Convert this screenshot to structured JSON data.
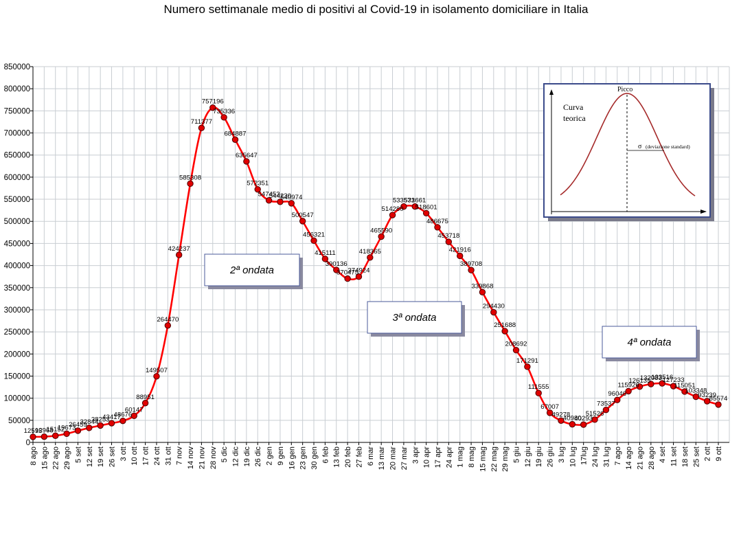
{
  "chart_data": {
    "type": "line",
    "title": "Numero settimanale medio di positivi al Covid-19  in isolamento domiciliare in Italia",
    "xlabel": "",
    "ylabel": "",
    "ylim": [
      0,
      850000
    ],
    "ytick_step": 50000,
    "grid": true,
    "categories": [
      "8 ago",
      "15 ago",
      "22 ago",
      "29 ago",
      "5 set",
      "12 set",
      "19 set",
      "26 set",
      "3 ott",
      "10 ott",
      "17 ott",
      "24 ott",
      "31 ott",
      "7 nov",
      "14 nov",
      "21 nov",
      "28 nov",
      "5 dic",
      "12 dic",
      "19 dic",
      "26 dic",
      "2 gen",
      "9 gen",
      "16 gen",
      "23 gen",
      "30 gen",
      "6 feb",
      "13 feb",
      "20 feb",
      "27 feb",
      "6 mar",
      "13 mar",
      "20 mar",
      "27 mar",
      "3 apr",
      "10 apr",
      "17 apr",
      "24 apr",
      "1 mag",
      "8 mag",
      "15 mag",
      "22 mag",
      "29 mag",
      "5 giu",
      "12 giu",
      "19 giu",
      "26 giu",
      "3 lug",
      "10 lug",
      "17lug",
      "24 lug",
      "31 lug",
      "7 ago",
      "14 ago",
      "21 ago",
      "28 ago",
      "4 set",
      "11 set",
      "18 set",
      "25 set",
      "2 ott",
      "9 ott"
    ],
    "series": [
      {
        "color": "#ff0000",
        "marker_color": "#e00000",
        "values": [
          12595,
          12968,
          15152,
          19673,
          26459,
          32844,
          38253,
          43417,
          48676,
          60147,
          88951,
          149507,
          264470,
          424237,
          585308,
          711377,
          757196,
          735336,
          684887,
          635647,
          572351,
          547453,
          544230,
          540974,
          500547,
          456321,
          415111,
          390136,
          370475,
          374924,
          418365,
          465590,
          514280,
          533571,
          533661,
          518601,
          486675,
          453718,
          421916,
          389708,
          339868,
          294430,
          251688,
          208692,
          171291,
          111555,
          67007,
          49278,
          40980,
          40293,
          51526,
          73537,
          96046,
          115926,
          126135,
          132083,
          133516,
          127233,
          115051,
          103348,
          93239,
          85574
        ],
        "labels": [
          "12595",
          "12968",
          "15152",
          "19673",
          "26459",
          "32844",
          "38253",
          "43417",
          "48676",
          "60147",
          "88951",
          "149507",
          "264470",
          "424237",
          "585308",
          "711377",
          "757196",
          "735336",
          "684887",
          "635647",
          "572351",
          "547453",
          "544230",
          "540974",
          "500547",
          "456321",
          "415111",
          "390136",
          "370475",
          "374924",
          "418365",
          "465590",
          "514280",
          "533571",
          "533661",
          "518601",
          "486675",
          "453718",
          "421916",
          "389708",
          "339868",
          "294430",
          "251688",
          "208692",
          "171291",
          "111555",
          "67007",
          "49278",
          "40980",
          "40293",
          "51526",
          "73537",
          "96046",
          "115926",
          "126135",
          "132083",
          "133516",
          "127233",
          "115051",
          "103348",
          "93239",
          "85574"
        ]
      }
    ],
    "annotations": [
      {
        "text": "2ª ondata",
        "x_index": 17
      },
      {
        "text": "3ª ondata",
        "x_index": 34
      },
      {
        "text": "4ª ondata",
        "x_index": 57
      }
    ],
    "inset": {
      "peak_label": "Picco",
      "curve_label_1": "Curva",
      "curve_label_2": "teorica",
      "sigma_label": "σ",
      "sigma_note": "(deviazione standard)",
      "curve_color": "#a52a2a"
    }
  }
}
